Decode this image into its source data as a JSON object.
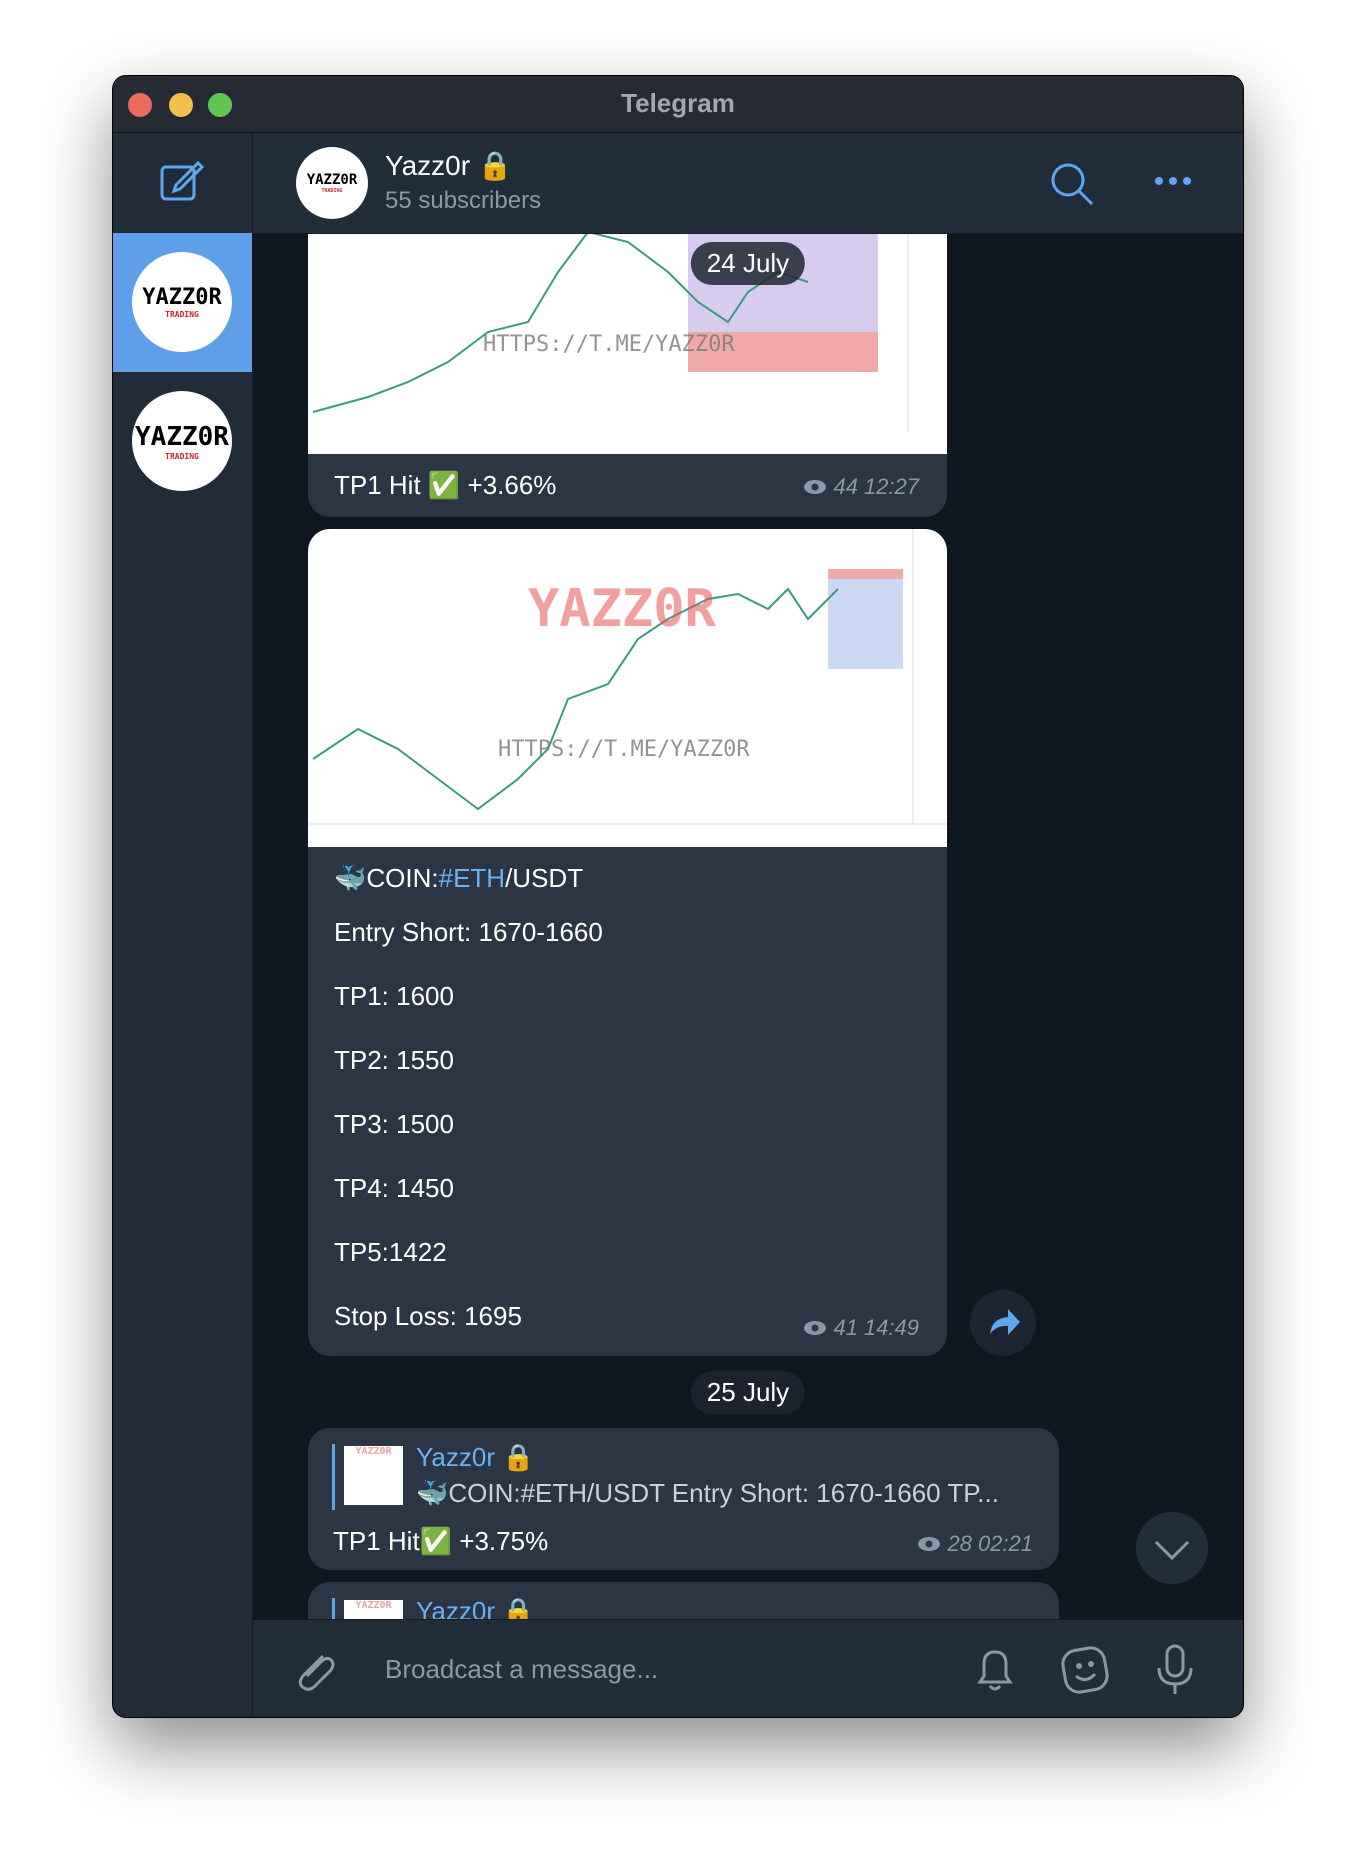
{
  "window": {
    "title": "Telegram"
  },
  "header": {
    "channel_name": "Yazz0r 🔒",
    "subtitle": "55 subscribers"
  },
  "sidebar": {
    "avatars": [
      {
        "logo": "YAZZ0R",
        "tagline": "TRADING"
      },
      {
        "logo": "YAZZ0R",
        "tagline": "TRADING"
      }
    ]
  },
  "dates": [
    "24 July",
    "25 July"
  ],
  "messages": [
    {
      "image": {
        "watermark_url": "HTTPS://T.ME/YAZZ0R"
      },
      "text": "TP1 Hit ✅ +3.66%",
      "views": 44,
      "time": "12:27"
    },
    {
      "image": {
        "watermark_logo": "YAZZ0R",
        "watermark_url": "HTTPS://T.ME/YAZZ0R"
      },
      "title_parts": [
        "🐳COIN:",
        "#ETH",
        "/USDT"
      ],
      "lines": [
        "Entry Short: 1670-1660",
        "TP1: 1600",
        "TP2: 1550",
        "TP3: 1500",
        "TP4: 1450",
        "TP5:1422",
        "Stop Loss: 1695"
      ],
      "views": 41,
      "time": "14:49"
    },
    {
      "reply": {
        "name": "Yazz0r 🔒",
        "thumb_logo": "YAZZ0R",
        "text": "🐳COIN:#ETH/USDT  Entry Short: 1670-1660  TP..."
      },
      "text": "TP1 Hit✅ +3.75%",
      "views": 28,
      "time": "02:21"
    },
    {
      "reply": {
        "name": "Yazz0r 🔒",
        "thumb_logo": "YAZZ0R"
      }
    }
  ],
  "composer": {
    "placeholder": "Broadcast a message..."
  }
}
